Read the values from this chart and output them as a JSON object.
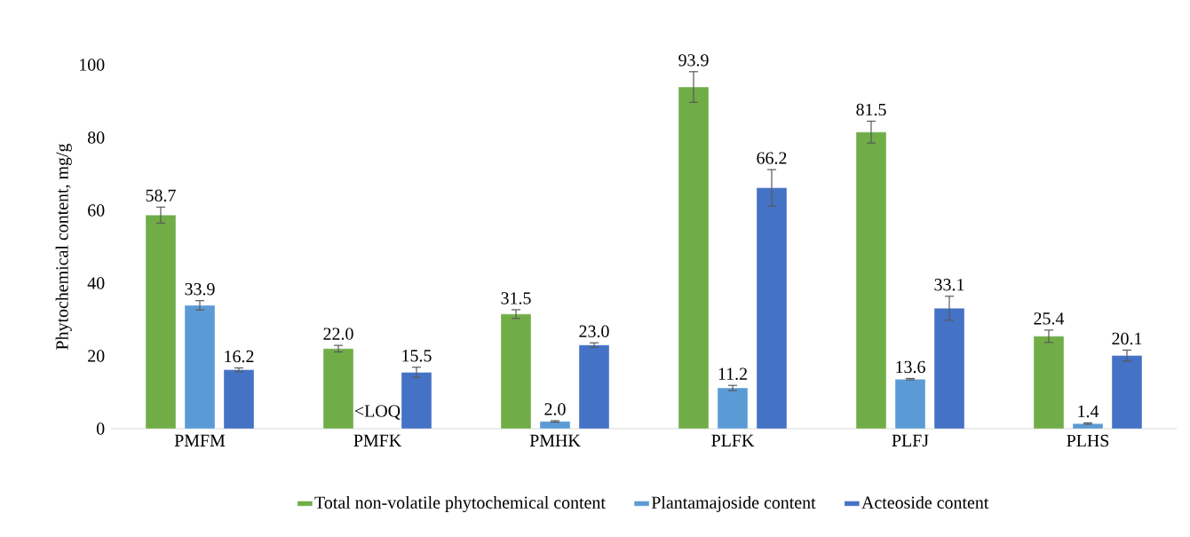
{
  "chart_data": {
    "type": "bar",
    "ylabel": "Phytochemical content, mg/g",
    "categories": [
      "PMFM",
      "PMFK",
      "PMHK",
      "PLFK",
      "PLFJ",
      "PLHS"
    ],
    "series": [
      {
        "name": "Total non-volatile phytochemical content",
        "color": "#70ad47",
        "values": [
          58.7,
          22.0,
          31.5,
          93.9,
          81.5,
          25.4
        ],
        "errors": [
          2.2,
          0.9,
          1.2,
          4.2,
          3.0,
          1.7
        ],
        "value_labels": [
          "58.7",
          "22.0",
          "31.5",
          "93.9",
          "81.5",
          "25.4"
        ]
      },
      {
        "name": "Plantamajoside content",
        "color": "#5b9bd5",
        "values": [
          33.9,
          null,
          2.0,
          11.2,
          13.6,
          1.4
        ],
        "errors": [
          1.3,
          null,
          0.2,
          0.7,
          0.2,
          0.2
        ],
        "value_labels": [
          "33.9",
          "<LOQ",
          "2.0",
          "11.2",
          "13.6",
          "1.4"
        ]
      },
      {
        "name": "Acteoside content",
        "color": "#4472c4",
        "values": [
          16.2,
          15.5,
          23.0,
          66.2,
          33.1,
          20.1
        ],
        "errors": [
          0.5,
          1.4,
          0.6,
          5.0,
          3.3,
          1.5
        ],
        "value_labels": [
          "16.2",
          "15.5",
          "23.0",
          "66.2",
          "33.1",
          "20.1"
        ]
      }
    ],
    "ylim": [
      0,
      100
    ],
    "yticks": [
      0,
      20,
      40,
      60,
      80,
      100
    ],
    "grid": false,
    "legend": "bottom"
  }
}
